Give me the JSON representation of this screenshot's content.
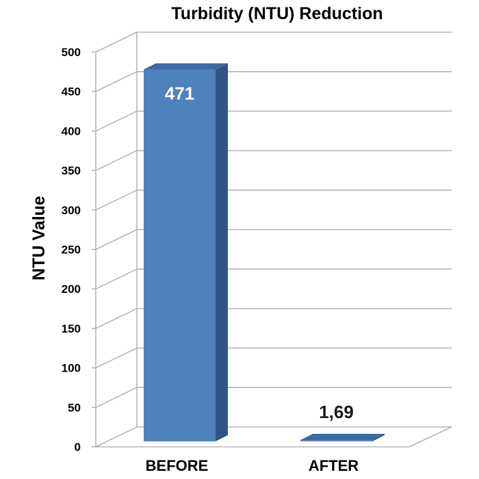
{
  "chart_data": {
    "type": "bar",
    "title": "Turbidity (NTU) Reduction",
    "xlabel": "",
    "ylabel": "NTU Value",
    "categories": [
      "BEFORE",
      "AFTER"
    ],
    "values": [
      471,
      1.69
    ],
    "data_labels": [
      "471",
      "1,69"
    ],
    "ylim": [
      0,
      500
    ],
    "yticks": [
      0,
      50,
      100,
      150,
      200,
      250,
      300,
      350,
      400,
      450,
      500
    ],
    "grid": true,
    "style": "3d-column",
    "colors": {
      "bar_front": "#4f81bd",
      "bar_side": "#2f5587",
      "bar_top": "#3e6aa3",
      "gridline": "#a6a6a6"
    }
  }
}
